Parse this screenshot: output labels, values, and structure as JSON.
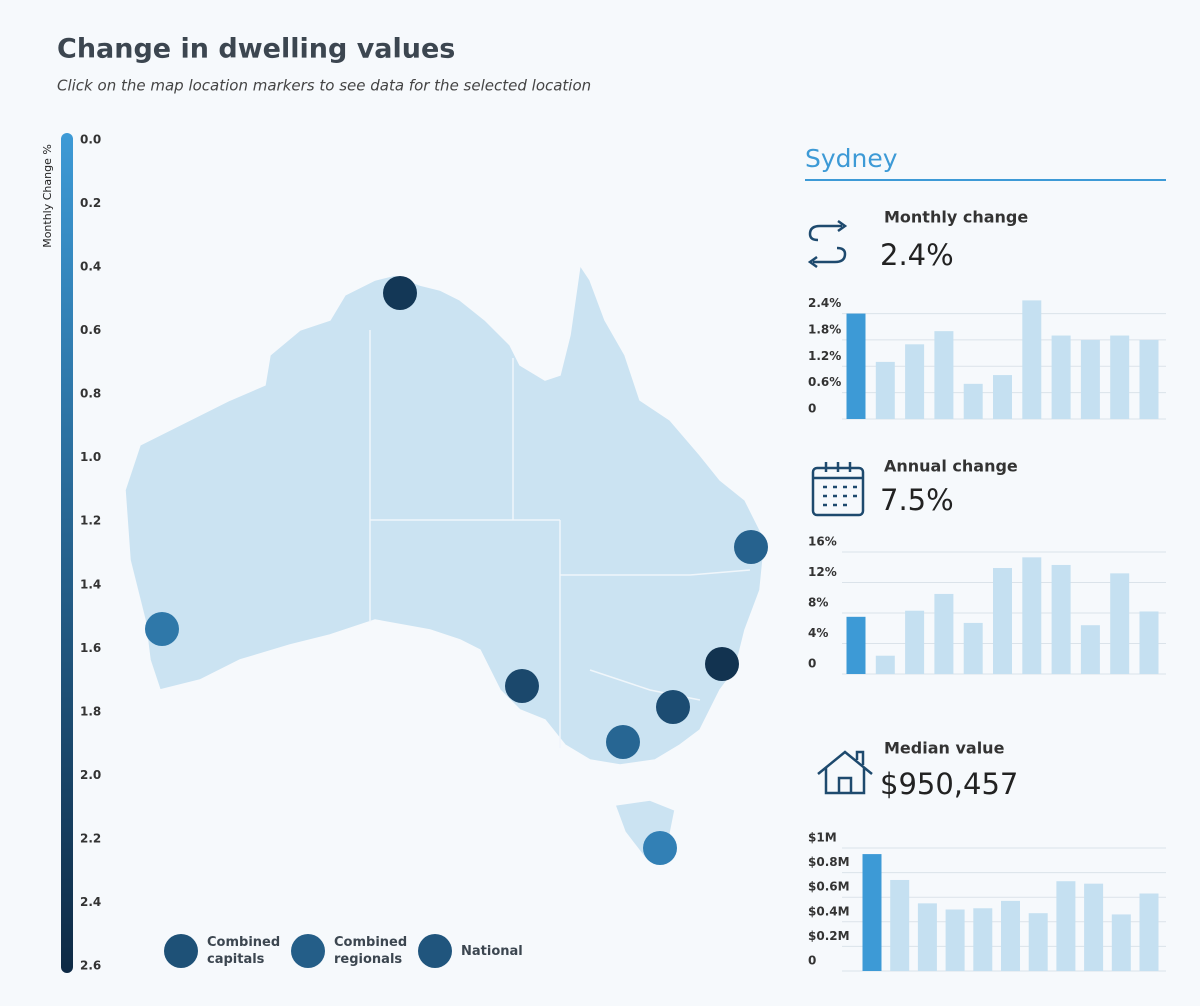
{
  "header": {
    "title": "Change in dwelling values",
    "subtitle": "Click on the map location markers to see data for the selected location"
  },
  "color_scale": {
    "label": "Monthly Change %",
    "lim": [
      0,
      2.6
    ],
    "colors": [
      "#3d9ad6",
      "#0e2a45"
    ],
    "ticks": [
      {
        "value": 0,
        "label": "0.0"
      },
      0.2,
      0.4,
      0.6,
      0.8,
      {
        "value": 1,
        "label": "1.0"
      },
      1.2,
      1.4,
      1.6,
      1.8,
      {
        "value": 2,
        "label": "2.0"
      },
      2.2,
      2.4,
      2.6
    ]
  },
  "markers": [
    2.3,
    1.3,
    0.8,
    2.4,
    1.9,
    1.8,
    1.2,
    0.6
  ],
  "legend": [
    {
      "label": "Combined capitals",
      "value": 1.7
    },
    {
      "label": "Combined regionals",
      "value": 1.4
    },
    {
      "label": "National",
      "value": 1.6
    }
  ],
  "panel": {
    "location": "Sydney"
  },
  "chart_data": [
    {
      "type": "bar",
      "title": "Monthly change",
      "value_label": "2.4%",
      "color": "#c5e0f1",
      "highlight_color": "#3d9ad6",
      "values": [
        2.4,
        1.3,
        1.7,
        2.0,
        0.8,
        1.0,
        2.7,
        1.9,
        1.8,
        1.9,
        1.8
      ],
      "ylim": [
        0,
        2.8
      ],
      "yticks": [
        0,
        {
          "value": 0.6,
          "label": "0.6%"
        },
        {
          "value": 1.2,
          "label": "1.2%"
        },
        {
          "value": 1.8,
          "label": "1.8%"
        },
        {
          "value": 2.4,
          "label": "2.4%"
        }
      ]
    },
    {
      "type": "bar",
      "title": "Annual change",
      "value_label": "7.5%",
      "color": "#c5e0f1",
      "highlight_color": "#3d9ad6",
      "values": [
        7.5,
        2.4,
        8.3,
        10.5,
        6.7,
        13.9,
        15.3,
        14.3,
        6.4,
        13.2,
        8.2
      ],
      "ylim": [
        0,
        16
      ],
      "yticks": [
        0,
        {
          "value": 4,
          "label": "4%"
        },
        {
          "value": 8,
          "label": "8%"
        },
        {
          "value": 12,
          "label": "12%"
        },
        {
          "value": 16,
          "label": "16%"
        }
      ]
    },
    {
      "type": "bar",
      "title": "Median value",
      "value_label": "$950,457",
      "color": "#c5e0f1",
      "highlight_color": "#3d9ad6",
      "values": [
        950457,
        740000,
        550000,
        500000,
        510000,
        570000,
        470000,
        730000,
        710000,
        460000,
        630000
      ],
      "ylim": [
        0,
        1000000
      ],
      "yticks": [
        0,
        {
          "value": 200000,
          "label": "$0.2M"
        },
        {
          "value": 400000,
          "label": "$0.4M"
        },
        {
          "value": 600000,
          "label": "$0.6M"
        },
        {
          "value": 800000,
          "label": "$0.8M"
        },
        {
          "value": 1000000,
          "label": "$1M"
        }
      ]
    }
  ]
}
